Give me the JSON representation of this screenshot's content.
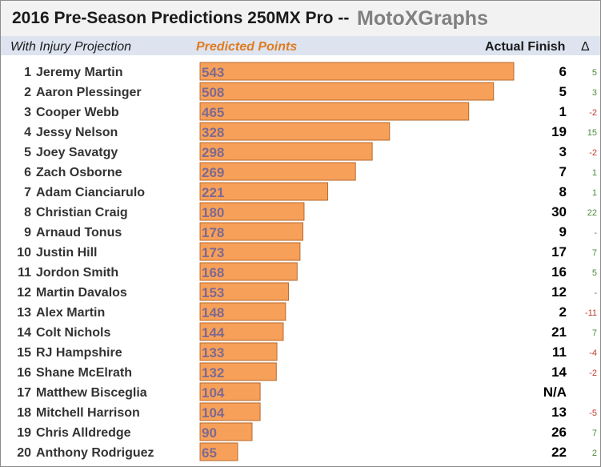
{
  "title": {
    "main": "2016 Pre-Season Predictions 250MX Pro  --",
    "brand": "MotoXGraphs"
  },
  "headers": {
    "injury": "With Injury Projection",
    "points": "Predicted Points",
    "actual": "Actual Finish",
    "delta": "Δ"
  },
  "colors": {
    "bar": "#f7a05a",
    "points_header": "#e07b20",
    "delta_positive": "#4c8a3c",
    "delta_negative": "#c0392b"
  },
  "chart_data": {
    "type": "bar",
    "orientation": "horizontal",
    "title": "2016 Pre-Season Predictions 250MX Pro",
    "series_label": "Predicted Points",
    "xlim": [
      0,
      543
    ],
    "rows": [
      {
        "rank": "1",
        "rider": "Jeremy Martin",
        "points": 543,
        "finish": "6",
        "delta": "5"
      },
      {
        "rank": "2",
        "rider": "Aaron Plessinger",
        "points": 508,
        "finish": "5",
        "delta": "3"
      },
      {
        "rank": "3",
        "rider": "Cooper Webb",
        "points": 465,
        "finish": "1",
        "delta": "-2"
      },
      {
        "rank": "4",
        "rider": "Jessy Nelson",
        "points": 328,
        "finish": "19",
        "delta": "15"
      },
      {
        "rank": "5",
        "rider": "Joey Savatgy",
        "points": 298,
        "finish": "3",
        "delta": "-2"
      },
      {
        "rank": "6",
        "rider": "Zach Osborne",
        "points": 269,
        "finish": "7",
        "delta": "1"
      },
      {
        "rank": "7",
        "rider": "Adam Cianciarulo",
        "points": 221,
        "finish": "8",
        "delta": "1"
      },
      {
        "rank": "8",
        "rider": "Christian Craig",
        "points": 180,
        "finish": "30",
        "delta": "22"
      },
      {
        "rank": "9",
        "rider": "Arnaud Tonus",
        "points": 178,
        "finish": "9",
        "delta": "-"
      },
      {
        "rank": "10",
        "rider": "Justin Hill",
        "points": 173,
        "finish": "17",
        "delta": "7"
      },
      {
        "rank": "11",
        "rider": "Jordon Smith",
        "points": 168,
        "finish": "16",
        "delta": "5"
      },
      {
        "rank": "12",
        "rider": "Martin Davalos",
        "points": 153,
        "finish": "12",
        "delta": "-"
      },
      {
        "rank": "13",
        "rider": "Alex Martin",
        "points": 148,
        "finish": "2",
        "delta": "-11"
      },
      {
        "rank": "14",
        "rider": "Colt Nichols",
        "points": 144,
        "finish": "21",
        "delta": "7"
      },
      {
        "rank": "15",
        "rider": "RJ Hampshire",
        "points": 133,
        "finish": "11",
        "delta": "-4"
      },
      {
        "rank": "16",
        "rider": "Shane McElrath",
        "points": 132,
        "finish": "14",
        "delta": "-2"
      },
      {
        "rank": "17",
        "rider": "Matthew Bisceglia",
        "points": 104,
        "finish": "N/A",
        "delta": ""
      },
      {
        "rank": "18",
        "rider": "Mitchell Harrison",
        "points": 104,
        "finish": "13",
        "delta": "-5"
      },
      {
        "rank": "19",
        "rider": "Chris Alldredge",
        "points": 90,
        "finish": "26",
        "delta": "7"
      },
      {
        "rank": "20",
        "rider": "Anthony Rodriguez",
        "points": 65,
        "finish": "22",
        "delta": "2"
      }
    ]
  }
}
